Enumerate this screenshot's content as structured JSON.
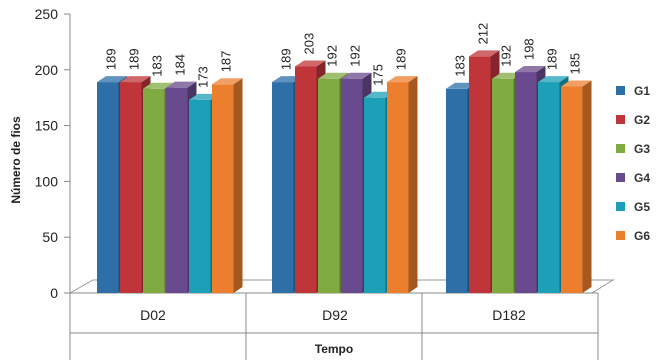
{
  "chart_data": {
    "type": "bar",
    "categories": [
      "D02",
      "D92",
      "D182"
    ],
    "series": [
      {
        "name": "G1",
        "values": [
          189,
          189,
          183
        ]
      },
      {
        "name": "G2",
        "values": [
          189,
          203,
          212
        ]
      },
      {
        "name": "G3",
        "values": [
          183,
          192,
          192
        ]
      },
      {
        "name": "G4",
        "values": [
          184,
          192,
          198
        ]
      },
      {
        "name": "G5",
        "values": [
          173,
          175,
          189
        ]
      },
      {
        "name": "G6",
        "values": [
          187,
          189,
          185
        ]
      }
    ],
    "xlabel": "Tempo",
    "ylabel": "Número de fios",
    "ylim": [
      0,
      250
    ],
    "yticks": [
      0,
      50,
      100,
      150,
      200,
      250
    ],
    "legend_position": "right",
    "grid": false,
    "colors": [
      "#2e6fa8",
      "#c0353a",
      "#7fab42",
      "#6a4a8e",
      "#1ba0b8",
      "#ec7f2e"
    ]
  }
}
